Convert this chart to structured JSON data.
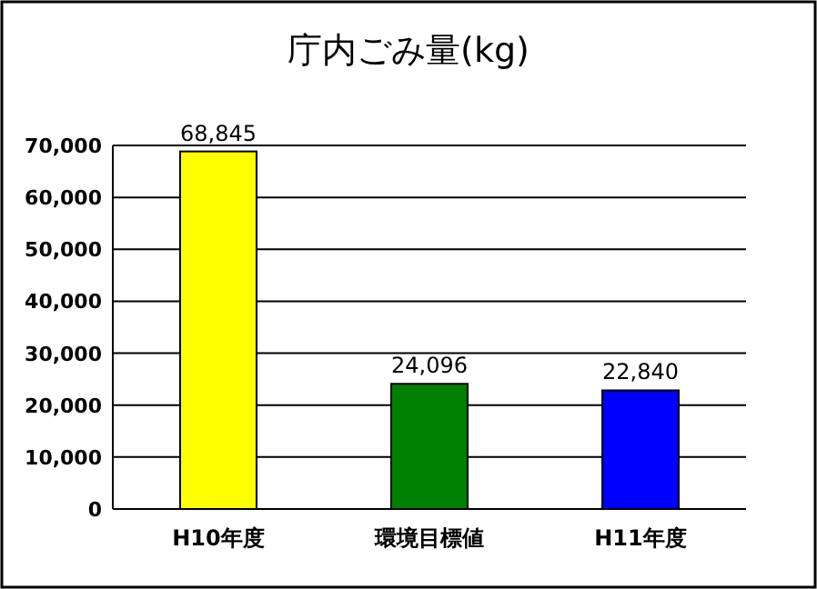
{
  "chart_data": {
    "type": "bar",
    "title": "庁内ごみ量(kg)",
    "categories": [
      "H10年度",
      "環境目標値",
      "H11年度"
    ],
    "values": [
      68845,
      24096,
      22840
    ],
    "colors": [
      "#ffff00",
      "#008000",
      "#0000ff"
    ],
    "value_labels": [
      "68,845",
      "24,096",
      "22,840"
    ],
    "ylim": [
      0,
      70000
    ],
    "yticks": [
      {
        "value": 0,
        "label": "0"
      },
      {
        "value": 10000,
        "label": "10,000"
      },
      {
        "value": 20000,
        "label": "20,000"
      },
      {
        "value": 30000,
        "label": "30,000"
      },
      {
        "value": 40000,
        "label": "40,000"
      },
      {
        "value": 50000,
        "label": "50,000"
      },
      {
        "value": 60000,
        "label": "60,000"
      },
      {
        "value": 70000,
        "label": "70,000"
      }
    ],
    "grid": "y"
  }
}
